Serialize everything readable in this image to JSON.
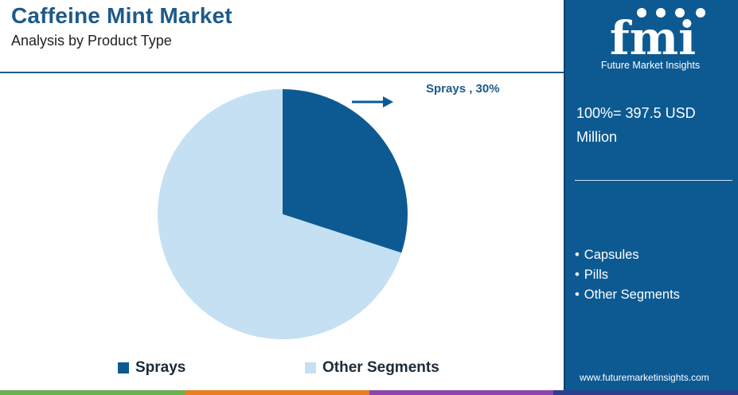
{
  "header": {
    "title": "Caffeine Mint Market",
    "subtitle": "Analysis by Product Type"
  },
  "chart_data": {
    "type": "pie",
    "slices": [
      {
        "label": "Sprays",
        "value": 30,
        "color": "#0d5a93"
      },
      {
        "label": "Other Segments",
        "value": 70,
        "color": "#c5e0f3"
      }
    ],
    "callout": "Sprays , 30%",
    "legend": [
      "Sprays",
      "Other Segments"
    ],
    "legend_position": "bottom"
  },
  "sidebar": {
    "logo_text": "fmi",
    "logo_tagline": "Future Market Insights",
    "total_line1": "100%= 397.5 USD",
    "total_line2": "Million",
    "other_segments": [
      "Capsules",
      "Pills",
      "Other Segments"
    ],
    "website": "www.futuremarketinsights.com"
  },
  "colors": {
    "brand_blue": "#0d5a93",
    "light_blue": "#c5e0f3",
    "title_blue": "#1d5a8a",
    "bar": [
      "#6ab04c",
      "#e67e22",
      "#8e44ad",
      "#2c3e8f"
    ]
  }
}
